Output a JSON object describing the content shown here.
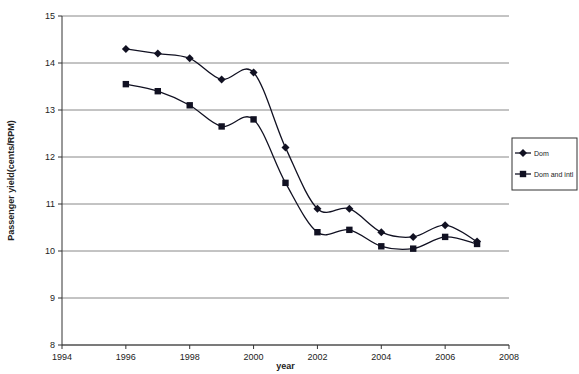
{
  "chart_data": {
    "type": "line",
    "x_label": "year",
    "y_label": "Passenger yield(cents/RPM)",
    "x": [
      1996,
      1997,
      1998,
      1999,
      2000,
      2001,
      2002,
      2003,
      2004,
      2005,
      2006,
      2007
    ],
    "series": [
      {
        "name": "Dom",
        "color": "#111122",
        "marker": "diamond",
        "line_style": "smooth",
        "values": [
          14.3,
          14.2,
          14.1,
          13.65,
          13.8,
          12.2,
          10.9,
          10.9,
          10.4,
          10.3,
          10.55,
          10.2
        ]
      },
      {
        "name": "Dom and intl",
        "color": "#111122",
        "marker": "square",
        "line_style": "smooth",
        "values": [
          13.55,
          13.4,
          13.1,
          12.65,
          12.8,
          11.45,
          10.4,
          10.45,
          10.1,
          10.05,
          10.3,
          10.15
        ]
      }
    ],
    "xlim": [
      1994,
      2008
    ],
    "xticks": [
      1994,
      1996,
      1998,
      2000,
      2002,
      2004,
      2006,
      2008
    ],
    "ylim": [
      8,
      15
    ],
    "yticks": [
      8,
      9,
      10,
      11,
      12,
      13,
      14,
      15
    ],
    "grid": true,
    "legend": "right"
  }
}
